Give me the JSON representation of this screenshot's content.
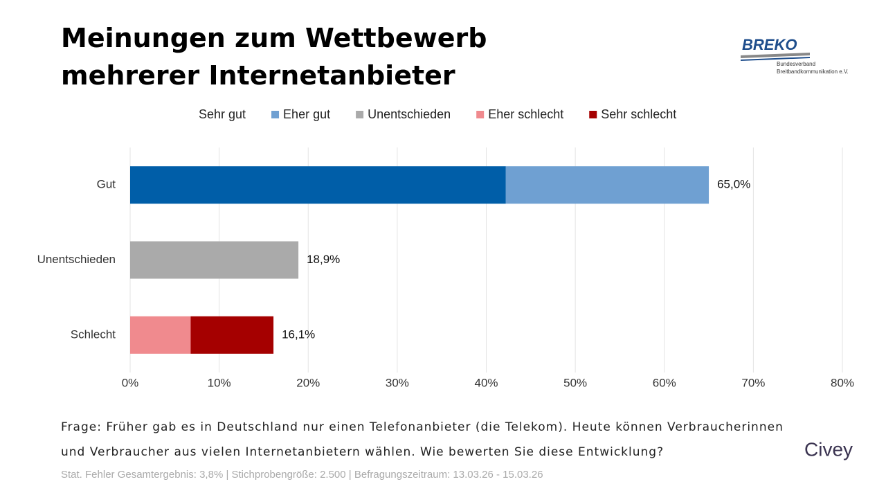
{
  "chart_data": {
    "type": "stacked-barh",
    "title": "Meinungen zum Wettbewerb mehrerer Internetanbieter",
    "categories": [
      "Gut",
      "Unentschieden",
      "Schlecht"
    ],
    "series": [
      {
        "name": "Sehr gut",
        "color": "#005ea8",
        "values": [
          42.2,
          null,
          null
        ]
      },
      {
        "name": "Eher gut",
        "color": "#6fa0d2",
        "values": [
          22.8,
          null,
          null
        ]
      },
      {
        "name": "Unentschieden",
        "color": "#aaaaaa",
        "values": [
          null,
          18.9,
          null
        ]
      },
      {
        "name": "Eher schlecht",
        "color": "#f08a8e",
        "values": [
          null,
          null,
          6.8
        ]
      },
      {
        "name": "Sehr schlecht",
        "color": "#a50000",
        "values": [
          null,
          null,
          9.3
        ]
      }
    ],
    "totals": [
      65.0,
      18.9,
      16.1
    ],
    "total_labels": [
      "65,0%",
      "18,9%",
      "16,1%"
    ],
    "xlim": [
      0,
      80
    ],
    "xticks": [
      {
        "value": 0,
        "label": "0%"
      },
      {
        "value": 10,
        "label": "10%"
      },
      {
        "value": 20,
        "label": "20%"
      },
      {
        "value": 30,
        "label": "30%"
      },
      {
        "value": 40,
        "label": "40%"
      },
      {
        "value": 50,
        "label": "50%"
      },
      {
        "value": 60,
        "label": "60%"
      },
      {
        "value": 70,
        "label": "70%"
      },
      {
        "value": 80,
        "label": "80%"
      }
    ],
    "grid": true,
    "legend": "top"
  },
  "question": [
    "Frage: Früher gab es in Deutschland nur einen Telefonanbieter (die Telekom). Heute können Verbraucherinnen",
    "und Verbraucher aus vielen Internetanbietern wählen. Wie bewerten Sie diese Entwicklung?"
  ],
  "footnote": "Stat. Fehler Gesamtergebnis: 3,8% | Stichprobengröße: 2.500 | Befragungszeitraum: 13.03.26 - 15.03.26",
  "logo": {
    "name": "BREKO",
    "line1": "Bundesverband",
    "line2": "Breitbandkommunikation e.V."
  },
  "brand": "Civey"
}
